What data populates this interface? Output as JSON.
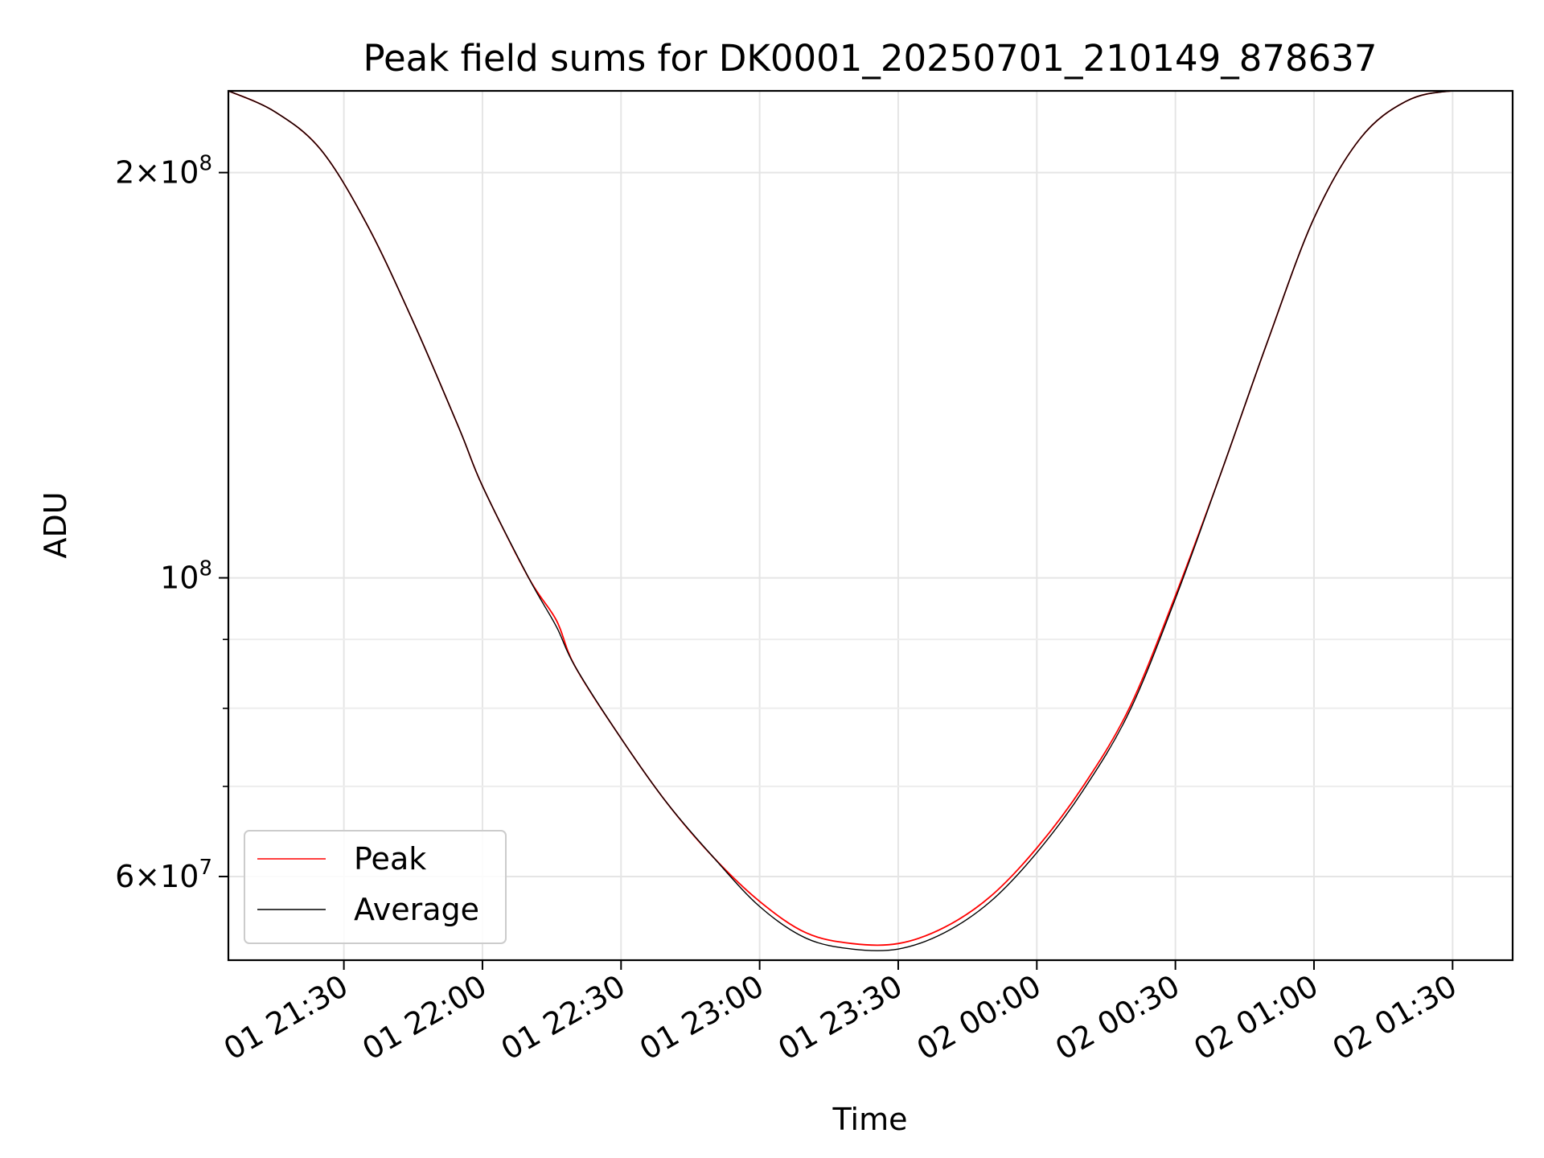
{
  "chart_data": {
    "type": "line",
    "title": "Peak field sums for DK0001_20250701_210149_878637",
    "xlabel": "Time",
    "ylabel": "ADU",
    "y_scale": "log",
    "ylim": [
      52000000,
      230000000
    ],
    "xlim": [
      "2025-07-01 21:05",
      "2025-07-02 01:43"
    ],
    "grid": true,
    "legend_position": "lower-left",
    "x_ticks": [
      {
        "value": "2025-07-01 21:30",
        "label": "01 21:30"
      },
      {
        "value": "2025-07-01 22:00",
        "label": "01 22:00"
      },
      {
        "value": "2025-07-01 22:30",
        "label": "01 22:30"
      },
      {
        "value": "2025-07-01 23:00",
        "label": "01 23:00"
      },
      {
        "value": "2025-07-01 23:30",
        "label": "01 23:30"
      },
      {
        "value": "2025-07-02 00:00",
        "label": "02 00:00"
      },
      {
        "value": "2025-07-02 00:30",
        "label": "02 00:30"
      },
      {
        "value": "2025-07-02 01:00",
        "label": "02 01:00"
      },
      {
        "value": "2025-07-02 01:30",
        "label": "02 01:30"
      }
    ],
    "y_ticks": [
      {
        "value": 200000000,
        "mantissa": "2",
        "base": "10",
        "exp": "8"
      },
      {
        "value": 100000000,
        "mantissa": "",
        "base": "10",
        "exp": "8"
      },
      {
        "value": 60000000,
        "mantissa": "6",
        "base": "10",
        "exp": "7"
      }
    ],
    "y_minor_ticks": [
      70000000,
      80000000,
      90000000
    ],
    "series": [
      {
        "name": "Peak",
        "color": "#ff0000",
        "x": [
          "2025-07-01 21:05",
          "2025-07-01 21:15",
          "2025-07-01 21:25",
          "2025-07-01 21:35",
          "2025-07-01 21:45",
          "2025-07-01 21:55",
          "2025-07-01 22:00",
          "2025-07-01 22:10",
          "2025-07-01 22:16",
          "2025-07-01 22:20",
          "2025-07-01 22:30",
          "2025-07-01 22:40",
          "2025-07-01 22:50",
          "2025-07-01 23:00",
          "2025-07-01 23:10",
          "2025-07-01 23:20",
          "2025-07-01 23:30",
          "2025-07-01 23:40",
          "2025-07-01 23:50",
          "2025-07-02 00:00",
          "2025-07-02 00:10",
          "2025-07-02 00:20",
          "2025-07-02 00:30",
          "2025-07-02 00:40",
          "2025-07-02 00:50",
          "2025-07-02 01:00",
          "2025-07-02 01:10",
          "2025-07-02 01:20",
          "2025-07-02 01:30",
          "2025-07-02 01:43"
        ],
        "y": [
          230000000,
          222000000,
          208000000,
          183000000,
          155000000,
          129000000,
          117000000,
          100000000,
          93000000,
          86000000,
          76000000,
          68000000,
          62000000,
          57500000,
          54500000,
          53500000,
          53500000,
          55000000,
          58000000,
          63000000,
          70000000,
          80000000,
          97000000,
          120000000,
          150000000,
          185000000,
          212000000,
          226000000,
          230000000,
          230000000
        ]
      },
      {
        "name": "Average",
        "color": "#000000",
        "x": [
          "2025-07-01 21:05",
          "2025-07-01 21:15",
          "2025-07-01 21:25",
          "2025-07-01 21:35",
          "2025-07-01 21:45",
          "2025-07-01 21:55",
          "2025-07-01 22:00",
          "2025-07-01 22:10",
          "2025-07-01 22:16",
          "2025-07-01 22:20",
          "2025-07-01 22:30",
          "2025-07-01 22:40",
          "2025-07-01 22:50",
          "2025-07-01 23:00",
          "2025-07-01 23:10",
          "2025-07-01 23:20",
          "2025-07-01 23:30",
          "2025-07-01 23:40",
          "2025-07-01 23:50",
          "2025-07-02 00:00",
          "2025-07-02 00:10",
          "2025-07-02 00:20",
          "2025-07-02 00:30",
          "2025-07-02 00:40",
          "2025-07-02 00:50",
          "2025-07-02 01:00",
          "2025-07-02 01:10",
          "2025-07-02 01:20",
          "2025-07-02 01:30",
          "2025-07-02 01:43"
        ],
        "y": [
          230000000,
          222000000,
          208000000,
          183000000,
          155000000,
          129000000,
          117000000,
          100000000,
          92000000,
          86000000,
          76000000,
          68000000,
          62000000,
          57000000,
          54000000,
          53000000,
          53000000,
          54500000,
          57500000,
          62500000,
          69500000,
          79500000,
          96500000,
          120000000,
          150000000,
          185000000,
          212000000,
          226000000,
          230000000,
          230000000
        ]
      }
    ]
  }
}
